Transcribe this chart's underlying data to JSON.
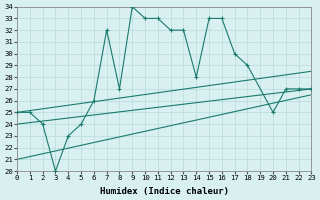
{
  "xlabel": "Humidex (Indice chaleur)",
  "xlim": [
    0,
    23
  ],
  "ylim": [
    20,
    34
  ],
  "yticks": [
    20,
    21,
    22,
    23,
    24,
    25,
    26,
    27,
    28,
    29,
    30,
    31,
    32,
    33,
    34
  ],
  "xticks": [
    0,
    1,
    2,
    3,
    4,
    5,
    6,
    7,
    8,
    9,
    10,
    11,
    12,
    13,
    14,
    15,
    16,
    17,
    18,
    19,
    20,
    21,
    22,
    23
  ],
  "line_color": "#1a7a6e",
  "background_color": "#d8f0f0",
  "grid_color": "#b8dada",
  "tick_fontsize": 5.2,
  "label_fontsize": 6.5,
  "jagged_x": [
    0,
    1,
    2,
    3,
    4,
    5,
    6,
    7,
    8,
    9,
    10,
    11,
    12,
    13,
    14,
    15,
    16,
    17,
    18,
    20,
    21,
    22,
    23
  ],
  "jagged_y": [
    25,
    25,
    24,
    20,
    23,
    24,
    26,
    32,
    27,
    34,
    33,
    33,
    32,
    32,
    28,
    33,
    33,
    30,
    29,
    25,
    27,
    27,
    27
  ],
  "trend1_x": [
    0,
    23
  ],
  "trend1_y": [
    25.0,
    28.5
  ],
  "trend2_x": [
    0,
    23
  ],
  "trend2_y": [
    24.0,
    27.0
  ],
  "trend3_x": [
    0,
    23
  ],
  "trend3_y": [
    21.0,
    26.5
  ]
}
